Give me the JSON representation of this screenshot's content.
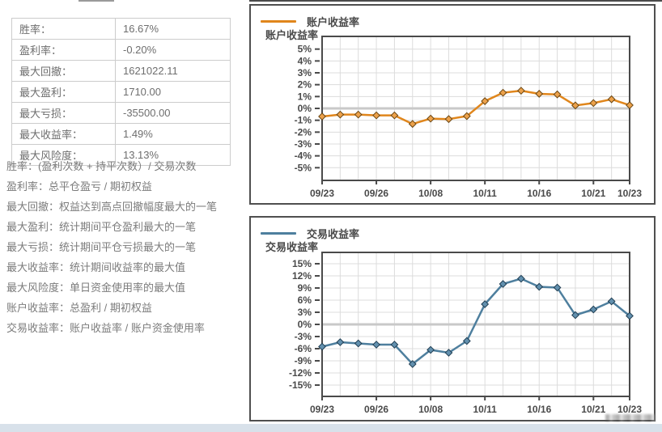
{
  "stats_table": {
    "rows": [
      {
        "label": "胜率：",
        "value": "16.67%"
      },
      {
        "label": "盈利率：",
        "value": "-0.20%"
      },
      {
        "label": "最大回撤：",
        "value": "1621022.11"
      },
      {
        "label": "最大盈利：",
        "value": "1710.00"
      },
      {
        "label": "最大亏损：",
        "value": "-35500.00"
      },
      {
        "label": "最大收益率：",
        "value": "1.49%"
      },
      {
        "label": "最大风险度：",
        "value": "13.13%"
      }
    ]
  },
  "explanations": [
    "胜率：(盈利次数 + 持平次数）/ 交易次数",
    "盈利率：总平仓盈亏 / 期初权益",
    "最大回撤：权益达到高点回撤幅度最大的一笔",
    "最大盈利：统计期间平仓盈利最大的一笔",
    "最大亏损：统计期间平仓亏损最大的一笔",
    "最大收益率：统计期间收益率的最大值",
    "最大风险度：单日资金使用率的最大值",
    "账户收益率：总盈利 / 期初权益",
    "交易收益率：账户收益率 / 账户资金使用率"
  ],
  "chart_data": [
    {
      "type": "line",
      "title": "账户收益率",
      "legend_label": "账户收益率",
      "ylabel": "账户收益率",
      "xlabel": "",
      "legend_position": "top-left",
      "grid": true,
      "line_color": "#E0861C",
      "marker_fill": "#ECA14B",
      "marker_stroke": "#6B4714",
      "y_ticks": [
        5,
        4,
        3,
        2,
        1,
        0,
        -1,
        -2,
        -3,
        -4,
        -5
      ],
      "y_tick_suffix": "%",
      "ylim": [
        -6.07,
        6.07
      ],
      "x_tick_labels": [
        {
          "index": 0,
          "label": "09/23"
        },
        {
          "index": 3,
          "label": "09/26"
        },
        {
          "index": 6,
          "label": "10/08"
        },
        {
          "index": 9,
          "label": "10/11"
        },
        {
          "index": 12,
          "label": "10/16"
        },
        {
          "index": 15,
          "label": "10/21"
        },
        {
          "index": 17,
          "label": "10/23"
        }
      ],
      "values": [
        -0.68,
        -0.52,
        -0.52,
        -0.59,
        -0.59,
        -1.31,
        -0.86,
        -0.9,
        -0.65,
        0.61,
        1.32,
        1.49,
        1.23,
        1.18,
        0.25,
        0.45,
        0.77,
        0.27
      ]
    },
    {
      "type": "line",
      "title": "交易收益率",
      "legend_label": "交易收益率",
      "ylabel": "交易收益率",
      "xlabel": "",
      "legend_position": "top-left",
      "grid": true,
      "line_color": "#4E7F9E",
      "marker_fill": "#6290AE",
      "marker_stroke": "#1F3D52",
      "y_ticks": [
        15,
        12,
        9,
        6,
        3,
        0,
        -3,
        -6,
        -9,
        -12,
        -15
      ],
      "y_tick_suffix": "%",
      "ylim": [
        -17.8,
        17.8
      ],
      "x_tick_labels": [
        {
          "index": 0,
          "label": "09/23"
        },
        {
          "index": 3,
          "label": "09/26"
        },
        {
          "index": 6,
          "label": "10/08"
        },
        {
          "index": 9,
          "label": "10/11"
        },
        {
          "index": 12,
          "label": "10/16"
        },
        {
          "index": 15,
          "label": "10/21"
        },
        {
          "index": 17,
          "label": "10/23"
        }
      ],
      "values": [
        -5.5,
        -4.4,
        -4.7,
        -5.0,
        -5.0,
        -9.8,
        -6.3,
        -7.0,
        -4.1,
        5.0,
        10.0,
        11.3,
        9.3,
        9.1,
        2.3,
        3.7,
        5.7,
        2.1
      ]
    }
  ]
}
